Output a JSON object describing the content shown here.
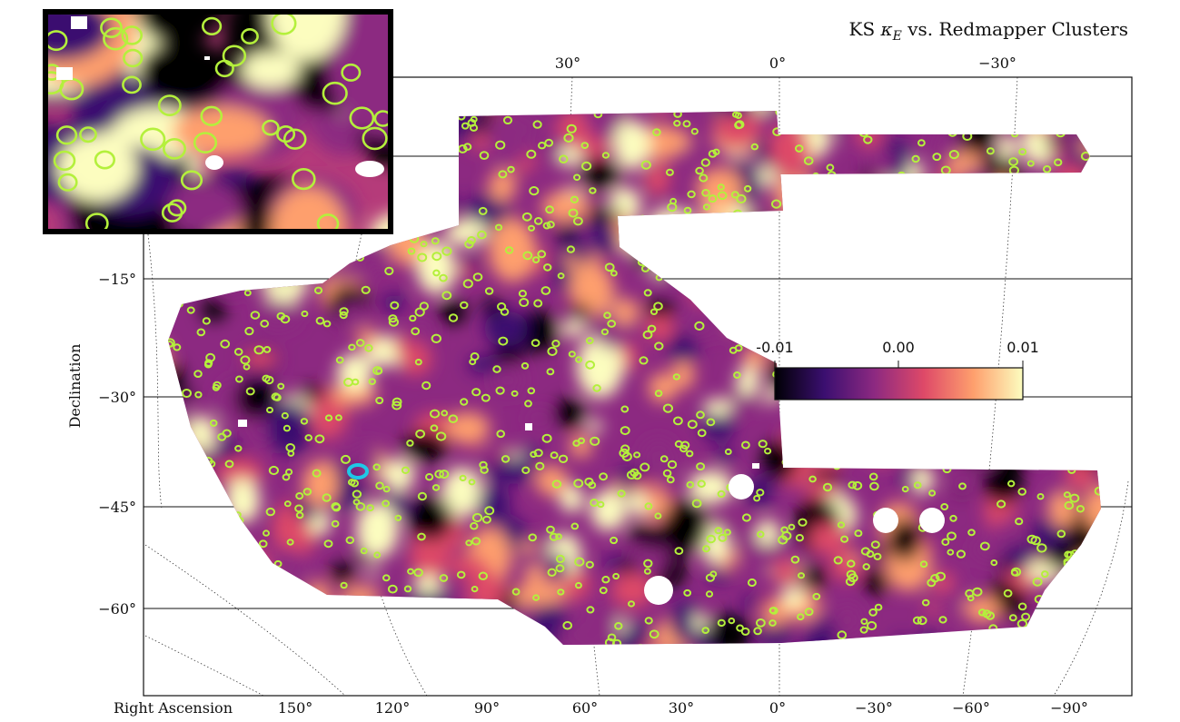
{
  "title_prefix": "KS ",
  "title_symbol": "κ",
  "title_subscript": "E",
  "title_suffix": " vs. Redmapper Clusters",
  "axes": {
    "xlabel": "Right Ascension",
    "ylabel": "Declination",
    "top_ticks": [
      "30°",
      "0°",
      "−30°"
    ],
    "bottom_ticks": [
      "150°",
      "120°",
      "90°",
      "60°",
      "30°",
      "0°",
      "−30°",
      "−60°",
      "−90°"
    ],
    "dec_ticks": [
      "−15°",
      "−30°",
      "−45°",
      "−60°"
    ]
  },
  "colorbar": {
    "labels": [
      "-0.01",
      "0.00",
      "0.01"
    ],
    "range": [
      -0.012,
      0.012
    ],
    "colors": [
      "#000004",
      "#3b0f70",
      "#8c2981",
      "#de4968",
      "#fe9f6d",
      "#fcfdbf"
    ]
  },
  "colors": {
    "cluster_marker": "#b4f03c",
    "highlight_marker": "#1ec8e6",
    "inset_border": "#000000"
  },
  "legend": {
    "inset": "top-left",
    "colorbar": "center-right"
  }
}
